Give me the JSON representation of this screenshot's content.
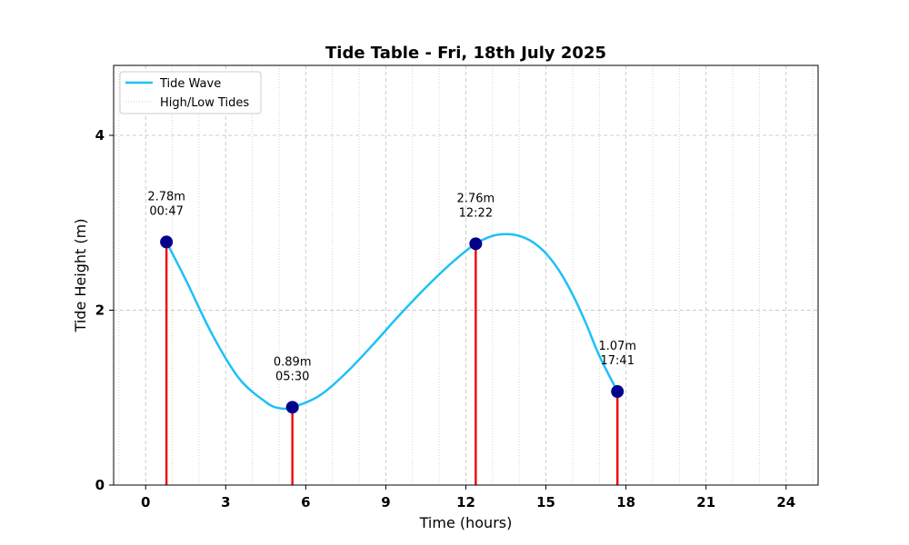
{
  "chart_data": {
    "type": "line",
    "title": "Tide Table - Fri, 18th July 2025",
    "xlabel": "Time (hours)",
    "ylabel": "Tide Height (m)",
    "xlim": [
      -1.2,
      25.2
    ],
    "ylim": [
      0,
      4.8
    ],
    "xticks": [
      0,
      3,
      6,
      9,
      12,
      15,
      18,
      21,
      24
    ],
    "yticks": [
      0,
      2,
      4
    ],
    "x_minor_grid_step": 1,
    "grid": true,
    "legend": {
      "placement": "top-left",
      "entries": [
        {
          "label": "Tide Wave",
          "style": "solid",
          "color": "#1ec0f8"
        },
        {
          "label": "High/Low Tides",
          "style": "dotted",
          "color": "#cccccc"
        }
      ]
    },
    "series": [
      {
        "name": "Tide Wave",
        "color": "#1ec0f8",
        "x": [
          0.78,
          1.5,
          2.5,
          3.5,
          4.5,
          5.0,
          5.5,
          6.5,
          7.5,
          8.5,
          9.5,
          10.5,
          11.5,
          12.37,
          13.0,
          13.5,
          14.0,
          14.5,
          15.0,
          15.5,
          16.0,
          16.5,
          17.0,
          17.68
        ],
        "y": [
          2.78,
          2.35,
          1.72,
          1.22,
          0.95,
          0.88,
          0.89,
          1.02,
          1.28,
          1.6,
          1.94,
          2.26,
          2.55,
          2.76,
          2.85,
          2.87,
          2.85,
          2.78,
          2.65,
          2.45,
          2.18,
          1.85,
          1.48,
          1.07
        ]
      }
    ],
    "tides": [
      {
        "time": "00:47",
        "hours": 0.78,
        "height": 2.78,
        "label": "2.78m"
      },
      {
        "time": "05:30",
        "hours": 5.5,
        "height": 0.89,
        "label": "0.89m"
      },
      {
        "time": "12:22",
        "hours": 12.37,
        "height": 2.76,
        "label": "2.76m"
      },
      {
        "time": "17:41",
        "hours": 17.68,
        "height": 1.07,
        "label": "1.07m"
      }
    ],
    "colors": {
      "wave": "#1ec0f8",
      "marker": "#00008b",
      "stem": "#ee1111",
      "grid": "#cccccc"
    }
  }
}
